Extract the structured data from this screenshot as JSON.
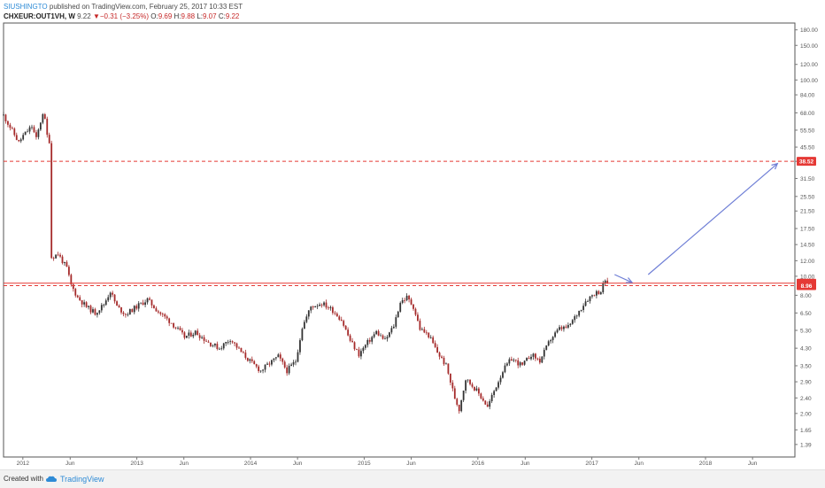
{
  "header": {
    "author": "SIUSHINGTO",
    "published": "published on TradingView.com, February 25, 2017 10:33 EST",
    "symbol": "CHXEUR:OUT1VH, W",
    "last": "9.22",
    "change": "−0.31 (−3.25%)",
    "open_label": "O:",
    "open": "9.69",
    "high_label": "H:",
    "high": "9.88",
    "low_label": "L:",
    "low": "9.07",
    "close_label": "C:",
    "close": "9.22"
  },
  "footer": {
    "created": "Created with",
    "brand": "TradingView"
  },
  "colors": {
    "up": "#333333",
    "down": "#a52a2a",
    "hline": "#e53935",
    "arrow": "#6f7fd6",
    "badge": "#e53935",
    "grid": "#cfcfcf"
  },
  "chart_data": {
    "type": "candlestick",
    "scale": "log",
    "x_axis": {
      "ticks": [
        "2012",
        "Jun",
        "2013",
        "Jun",
        "2014",
        "Jun",
        "2015",
        "Jun",
        "2016",
        "Jun",
        "2017",
        "Jun",
        "2018",
        "Jun"
      ]
    },
    "y_axis": {
      "range": [
        1.2,
        195
      ],
      "ticks": [
        1.39,
        1.65,
        2.0,
        2.4,
        2.9,
        3.5,
        4.3,
        5.3,
        6.5,
        8.0,
        10.0,
        12.0,
        14.5,
        17.5,
        21.5,
        25.5,
        31.5,
        38.5,
        45.5,
        55.5,
        68.0,
        84.0,
        100.0,
        120.0,
        150.0,
        180.0
      ],
      "tick_labels": [
        "1.39",
        "1.65",
        "2.00",
        "2.40",
        "2.90",
        "3.50",
        "4.30",
        "5.30",
        "6.50",
        "8.00",
        "10.00",
        "12.00",
        "14.50",
        "17.50",
        "21.50",
        "25.50",
        "31.50",
        "38.50",
        "45.50",
        "55.50",
        "68.00",
        "84.00",
        "100.00",
        "120.00",
        "150.00",
        "180.00"
      ]
    },
    "x_start": "2011-10-31",
    "x_end": "2018-10-15",
    "horizontal_lines": [
      {
        "value": 38.52,
        "label": "38.52",
        "style": "dashed"
      },
      {
        "value": 9.22,
        "label": "9.22",
        "style": "solid"
      },
      {
        "value": 8.96,
        "label": "8.96",
        "style": "dashed"
      }
    ],
    "annotations": [
      {
        "type": "arrow",
        "from": [
          "2017-03-15",
          10.2
        ],
        "to": [
          "2017-05-10",
          9.3
        ]
      },
      {
        "type": "line-arrow",
        "from": [
          "2017-07-01",
          10.2
        ],
        "to": [
          "2018-08-20",
          37.5
        ]
      }
    ],
    "path": [
      [
        "2011-10-31",
        66
      ],
      [
        "2011-11-28",
        55
      ],
      [
        "2011-12-19",
        48
      ],
      [
        "2012-01-02",
        52
      ],
      [
        "2012-01-30",
        58
      ],
      [
        "2012-02-13",
        50
      ],
      [
        "2012-03-05",
        68
      ],
      [
        "2012-03-12",
        62
      ],
      [
        "2012-03-19",
        52
      ],
      [
        "2012-03-26",
        49
      ],
      [
        "2012-04-02",
        12.5
      ],
      [
        "2012-04-23",
        13
      ],
      [
        "2012-05-21",
        11
      ],
      [
        "2012-06-04",
        9.0
      ],
      [
        "2012-06-25",
        7.8
      ],
      [
        "2012-07-23",
        7.0
      ],
      [
        "2012-08-20",
        6.5
      ],
      [
        "2012-09-17",
        7.2
      ],
      [
        "2012-10-08",
        8.4
      ],
      [
        "2012-10-29",
        7.0
      ],
      [
        "2012-11-26",
        6.4
      ],
      [
        "2012-12-31",
        7.0
      ],
      [
        "2013-02-04",
        7.6
      ],
      [
        "2013-03-11",
        6.6
      ],
      [
        "2013-04-22",
        5.8
      ],
      [
        "2013-06-03",
        4.9
      ],
      [
        "2013-07-08",
        5.2
      ],
      [
        "2013-08-19",
        4.6
      ],
      [
        "2013-09-23",
        4.3
      ],
      [
        "2013-10-28",
        4.8
      ],
      [
        "2013-12-02",
        4.1
      ],
      [
        "2014-01-06",
        3.6
      ],
      [
        "2014-02-03",
        3.3
      ],
      [
        "2014-03-03",
        3.6
      ],
      [
        "2014-03-31",
        3.9
      ],
      [
        "2014-04-28",
        3.3
      ],
      [
        "2014-05-26",
        3.7
      ],
      [
        "2014-06-16",
        5.5
      ],
      [
        "2014-07-14",
        7.0
      ],
      [
        "2014-08-18",
        7.3
      ],
      [
        "2014-09-22",
        6.7
      ],
      [
        "2014-10-20",
        6.0
      ],
      [
        "2014-11-17",
        4.7
      ],
      [
        "2014-12-15",
        4.0
      ],
      [
        "2015-01-12",
        4.6
      ],
      [
        "2015-02-09",
        5.2
      ],
      [
        "2015-03-09",
        4.7
      ],
      [
        "2015-04-06",
        5.6
      ],
      [
        "2015-04-27",
        7.4
      ],
      [
        "2015-05-18",
        7.8
      ],
      [
        "2015-06-08",
        7.0
      ],
      [
        "2015-06-29",
        5.4
      ],
      [
        "2015-07-27",
        5.0
      ],
      [
        "2015-08-24",
        4.1
      ],
      [
        "2015-09-21",
        3.5
      ],
      [
        "2015-10-19",
        2.4
      ],
      [
        "2015-11-02",
        2.1
      ],
      [
        "2015-11-23",
        3.0
      ],
      [
        "2015-12-21",
        2.7
      ],
      [
        "2016-01-18",
        2.35
      ],
      [
        "2016-02-01",
        2.15
      ],
      [
        "2016-02-22",
        2.6
      ],
      [
        "2016-03-21",
        3.3
      ],
      [
        "2016-04-18",
        3.8
      ],
      [
        "2016-05-23",
        3.5
      ],
      [
        "2016-06-20",
        4.0
      ],
      [
        "2016-07-18",
        3.7
      ],
      [
        "2016-08-22",
        4.8
      ],
      [
        "2016-09-19",
        5.4
      ],
      [
        "2016-10-17",
        5.5
      ],
      [
        "2016-11-14",
        6.4
      ],
      [
        "2016-12-12",
        7.5
      ],
      [
        "2017-01-09",
        8.2
      ],
      [
        "2017-01-30",
        8.4
      ],
      [
        "2017-02-13",
        9.6
      ],
      [
        "2017-02-20",
        9.22
      ]
    ]
  }
}
